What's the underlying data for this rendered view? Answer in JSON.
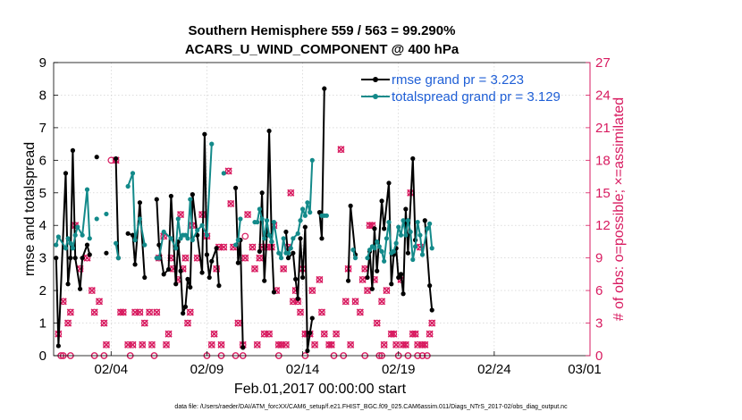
{
  "chart_data": {
    "type": "line",
    "title": "Southern Hemisphere 559 / 563 = 99.290%",
    "subtitle": "ACARS_U_WIND_COMPONENT @ 400 hPa",
    "xlabel": "Feb.01,2017 00:00:00 start",
    "ylabel_left": "rmse and totalspread",
    "ylabel_right": "# of obs: o=possible; ×=assimilated",
    "xlim": [
      1,
      29
    ],
    "ylim_left": [
      0,
      9
    ],
    "ylim_right": [
      0,
      27
    ],
    "x_tick_values": [
      4,
      9,
      14,
      19,
      24,
      29
    ],
    "x_tick_labels": [
      "02/04",
      "02/09",
      "02/14",
      "02/19",
      "02/24",
      "03/01"
    ],
    "y_ticks_left": [
      "0",
      "1",
      "2",
      "3",
      "4",
      "5",
      "6",
      "7",
      "8",
      "9"
    ],
    "y_ticks_right": [
      "0",
      "3",
      "6",
      "9",
      "12",
      "15",
      "18",
      "21",
      "24",
      "27"
    ],
    "footnote": "data file: /Users/raeder/DAI/ATM_forcXX/CAM6_setup/f.e21.FHIST_BGC.f09_025.CAM6assim.011/Diags_NTrS_2017-02/obs_diag_output.nc",
    "colors": {
      "rmse": "#000000",
      "spread": "#138a8a",
      "obs": "#d81b60",
      "legend_text": "#1f5fd6"
    },
    "series": [
      {
        "name": "rmse",
        "legend": "rmse grand pr = 3.223",
        "points": [
          [
            1.13,
            3.0
          ],
          [
            1.25,
            0.3
          ],
          [
            1.63,
            5.6
          ],
          [
            1.75,
            2.2
          ],
          [
            1.88,
            3.0
          ],
          [
            2.0,
            6.3
          ],
          [
            2.13,
            3.0
          ],
          [
            2.38,
            2.05
          ],
          [
            2.5,
            3.0
          ],
          [
            2.75,
            3.4
          ],
          [
            2.88,
            3.1
          ],
          [
            null,
            null
          ],
          [
            3.25,
            6.1
          ],
          [
            null,
            null
          ],
          [
            3.75,
            3.15
          ],
          [
            null,
            null
          ],
          [
            4.25,
            6.05
          ],
          [
            4.38,
            3.0
          ],
          [
            null,
            null
          ],
          [
            4.88,
            3.75
          ],
          [
            5.13,
            3.7
          ],
          [
            5.25,
            2.8
          ],
          [
            5.5,
            4.7
          ],
          [
            5.75,
            2.4
          ],
          [
            null,
            null
          ],
          [
            6.38,
            4.8
          ],
          [
            6.5,
            3.4
          ],
          [
            6.75,
            2.5
          ],
          [
            7.0,
            2.65
          ],
          [
            7.13,
            4.9
          ],
          [
            7.38,
            2.2
          ],
          [
            7.5,
            3.5
          ],
          [
            7.63,
            2.6
          ],
          [
            7.75,
            1.3
          ],
          [
            7.88,
            1.5
          ],
          [
            8.0,
            2.35
          ],
          [
            8.13,
            2.1
          ],
          [
            8.25,
            4.95
          ],
          [
            8.5,
            3.7
          ],
          [
            8.75,
            2.55
          ],
          [
            8.88,
            6.8
          ],
          [
            9.0,
            3.1
          ],
          [
            9.13,
            2.4
          ],
          [
            9.25,
            2.9
          ],
          [
            9.5,
            3.3
          ],
          [
            9.63,
            2.15
          ],
          [
            null,
            null
          ],
          [
            10.5,
            5.15
          ],
          [
            10.63,
            2.85
          ],
          [
            10.75,
            3.55
          ],
          [
            10.88,
            0.25
          ],
          [
            null,
            null
          ],
          [
            11.75,
            3.2
          ],
          [
            11.88,
            5.0
          ],
          [
            12.0,
            2.3
          ],
          [
            12.13,
            3.7
          ],
          [
            12.25,
            6.9
          ],
          [
            12.38,
            3.5
          ],
          [
            12.5,
            1.95
          ],
          [
            null,
            null
          ],
          [
            13.13,
            3.8
          ],
          [
            13.25,
            3.0
          ],
          [
            13.5,
            3.15
          ],
          [
            13.63,
            2.35
          ],
          [
            13.75,
            1.75
          ],
          [
            13.88,
            3.6
          ],
          [
            14.0,
            2.4
          ],
          [
            14.13,
            3.95
          ],
          [
            14.25,
            0.15
          ],
          [
            14.38,
            0.7
          ],
          [
            14.5,
            1.15
          ],
          [
            null,
            null
          ],
          [
            14.88,
            4.4
          ],
          [
            15.0,
            3.6
          ],
          [
            15.13,
            8.2
          ],
          [
            null,
            null
          ],
          [
            16.38,
            2.3
          ],
          [
            16.5,
            4.6
          ],
          [
            16.75,
            3.1
          ],
          [
            null,
            null
          ],
          [
            17.38,
            2.4
          ],
          [
            17.5,
            3.2
          ],
          [
            17.63,
            2.05
          ],
          [
            17.75,
            3.9
          ],
          [
            17.88,
            2.6
          ],
          [
            18.13,
            4.75
          ],
          [
            18.25,
            3.9
          ],
          [
            18.5,
            5.3
          ],
          [
            18.63,
            2.2
          ],
          [
            18.75,
            3.1
          ],
          [
            18.88,
            3.3
          ],
          [
            19.0,
            2.4
          ],
          [
            19.13,
            2.5
          ],
          [
            19.25,
            1.9
          ],
          [
            19.38,
            4.5
          ],
          [
            19.5,
            3.15
          ],
          [
            19.75,
            6.05
          ],
          [
            19.88,
            3.55
          ],
          [
            null,
            null
          ],
          [
            20.38,
            4.15
          ],
          [
            20.63,
            2.15
          ],
          [
            20.75,
            1.4
          ]
        ]
      },
      {
        "name": "totalspread",
        "legend": "totalspread grand pr = 3.129",
        "points": [
          [
            1.13,
            3.4
          ],
          [
            1.25,
            3.65
          ],
          [
            1.63,
            3.3
          ],
          [
            1.75,
            3.6
          ],
          [
            1.88,
            3.45
          ],
          [
            2.0,
            3.3
          ],
          [
            2.13,
            3.7
          ],
          [
            2.25,
            3.95
          ],
          [
            2.5,
            3.7
          ],
          [
            2.75,
            5.1
          ],
          [
            2.88,
            3.6
          ],
          [
            null,
            null
          ],
          [
            3.25,
            4.2
          ],
          [
            null,
            null
          ],
          [
            3.75,
            4.35
          ],
          [
            null,
            null
          ],
          [
            4.25,
            3.45
          ],
          [
            4.38,
            3.0
          ],
          [
            null,
            null
          ],
          [
            4.88,
            5.2
          ],
          [
            5.13,
            5.6
          ],
          [
            5.25,
            3.55
          ],
          [
            5.5,
            4.2
          ],
          [
            5.75,
            3.4
          ],
          [
            null,
            null
          ],
          [
            6.38,
            3.0
          ],
          [
            6.5,
            3.0
          ],
          [
            6.75,
            3.8
          ],
          [
            7.13,
            3.6
          ],
          [
            7.38,
            3.3
          ],
          [
            7.5,
            4.2
          ],
          [
            7.63,
            3.6
          ],
          [
            7.75,
            3.7
          ],
          [
            7.88,
            3.7
          ],
          [
            8.0,
            3.6
          ],
          [
            8.13,
            4.8
          ],
          [
            8.25,
            3.55
          ],
          [
            8.5,
            3.85
          ],
          [
            8.75,
            4.0
          ],
          [
            9.0,
            3.7
          ],
          [
            9.25,
            6.5
          ],
          [
            null,
            null
          ],
          [
            9.88,
            5.6
          ],
          [
            null,
            null
          ],
          [
            10.5,
            3.4
          ],
          [
            10.63,
            3.55
          ],
          [
            10.75,
            4.2
          ],
          [
            null,
            null
          ],
          [
            11.5,
            4.1
          ],
          [
            11.63,
            4.1
          ],
          [
            11.75,
            4.5
          ],
          [
            11.88,
            4.2
          ],
          [
            12.0,
            3.6
          ],
          [
            12.13,
            4.15
          ],
          [
            12.25,
            3.7
          ],
          [
            12.38,
            3.5
          ],
          [
            12.5,
            4.1
          ],
          [
            12.75,
            3.15
          ],
          [
            12.88,
            3.0
          ],
          [
            13.0,
            3.6
          ],
          [
            13.13,
            3.15
          ],
          [
            13.25,
            3.15
          ],
          [
            13.38,
            3.3
          ],
          [
            13.5,
            3.6
          ],
          [
            13.75,
            3.75
          ],
          [
            13.88,
            4.15
          ],
          [
            14.0,
            4.5
          ],
          [
            14.13,
            4.3
          ],
          [
            14.25,
            4.7
          ],
          [
            14.38,
            4.4
          ],
          [
            14.5,
            6.0
          ],
          [
            null,
            null
          ],
          [
            15.0,
            4.3
          ],
          [
            15.13,
            4.3
          ],
          [
            15.25,
            4.3
          ],
          [
            null,
            null
          ],
          [
            16.63,
            3.25
          ],
          [
            16.75,
            3.0
          ],
          [
            null,
            null
          ],
          [
            17.38,
            3.0
          ],
          [
            17.5,
            3.25
          ],
          [
            17.63,
            3.35
          ],
          [
            17.75,
            3.3
          ],
          [
            17.88,
            3.5
          ],
          [
            18.0,
            3.35
          ],
          [
            18.13,
            3.2
          ],
          [
            18.25,
            2.9
          ],
          [
            18.38,
            3.6
          ],
          [
            18.5,
            4.1
          ],
          [
            18.63,
            3.15
          ],
          [
            18.75,
            3.2
          ],
          [
            18.88,
            3.45
          ],
          [
            19.0,
            3.95
          ],
          [
            19.13,
            3.7
          ],
          [
            19.25,
            4.15
          ],
          [
            19.38,
            3.7
          ],
          [
            19.5,
            4.15
          ],
          [
            19.63,
            3.8
          ],
          [
            19.75,
            2.95
          ],
          [
            19.88,
            3.35
          ],
          [
            20.0,
            4.1
          ],
          [
            20.13,
            3.7
          ],
          [
            20.25,
            3.1
          ],
          [
            20.5,
            3.9
          ],
          [
            20.63,
            4.05
          ],
          [
            20.75,
            3.3
          ]
        ]
      }
    ],
    "obs_assimilated": [
      [
        1.25,
        2
      ],
      [
        1.5,
        5
      ],
      [
        1.75,
        3
      ],
      [
        1.88,
        4
      ],
      [
        2.13,
        12
      ],
      [
        2.38,
        8
      ],
      [
        2.75,
        9
      ],
      [
        3.0,
        6
      ],
      [
        3.13,
        4
      ],
      [
        3.38,
        5
      ],
      [
        3.63,
        3
      ],
      [
        3.75,
        1
      ],
      [
        4.25,
        18
      ],
      [
        4.5,
        4
      ],
      [
        4.63,
        4
      ],
      [
        4.88,
        1
      ],
      [
        5.13,
        1
      ],
      [
        5.25,
        4
      ],
      [
        5.5,
        4
      ],
      [
        5.63,
        1
      ],
      [
        5.75,
        3
      ],
      [
        6.0,
        4
      ],
      [
        6.13,
        1
      ],
      [
        6.38,
        4
      ],
      [
        6.5,
        9
      ],
      [
        6.75,
        11
      ],
      [
        6.88,
        1
      ],
      [
        7.0,
        2
      ],
      [
        7.13,
        9
      ],
      [
        7.25,
        8
      ],
      [
        7.5,
        7
      ],
      [
        7.63,
        13
      ],
      [
        7.75,
        8
      ],
      [
        7.88,
        9
      ],
      [
        8.0,
        3
      ],
      [
        8.13,
        4
      ],
      [
        8.25,
        12
      ],
      [
        8.5,
        9
      ],
      [
        8.75,
        13
      ],
      [
        9.0,
        11
      ],
      [
        9.25,
        1
      ],
      [
        9.38,
        2
      ],
      [
        9.5,
        8
      ],
      [
        9.63,
        10
      ],
      [
        9.75,
        1
      ],
      [
        9.88,
        10
      ],
      [
        10.13,
        17
      ],
      [
        10.25,
        14
      ],
      [
        10.38,
        10
      ],
      [
        10.63,
        3
      ],
      [
        10.88,
        1
      ],
      [
        11.0,
        9
      ],
      [
        11.13,
        13
      ],
      [
        11.38,
        10
      ],
      [
        11.5,
        8
      ],
      [
        11.63,
        1
      ],
      [
        11.75,
        9
      ],
      [
        11.88,
        10
      ],
      [
        12.0,
        2
      ],
      [
        12.13,
        10
      ],
      [
        12.25,
        2
      ],
      [
        12.38,
        10
      ],
      [
        12.5,
        12
      ],
      [
        12.63,
        6
      ],
      [
        12.75,
        1
      ],
      [
        12.88,
        1
      ],
      [
        13.0,
        8
      ],
      [
        13.13,
        1
      ],
      [
        13.25,
        10
      ],
      [
        13.38,
        15
      ],
      [
        13.5,
        5
      ],
      [
        13.63,
        6
      ],
      [
        13.75,
        5
      ],
      [
        13.88,
        4
      ],
      [
        14.0,
        8
      ],
      [
        14.13,
        2
      ],
      [
        14.25,
        2
      ],
      [
        14.38,
        2
      ],
      [
        14.5,
        6
      ],
      [
        14.63,
        1
      ],
      [
        14.88,
        7
      ],
      [
        15.0,
        4
      ],
      [
        15.13,
        2
      ],
      [
        15.38,
        1
      ],
      [
        15.5,
        1
      ],
      [
        15.75,
        2
      ],
      [
        16.0,
        19
      ],
      [
        16.25,
        5
      ],
      [
        16.38,
        8
      ],
      [
        16.5,
        1
      ],
      [
        16.75,
        5
      ],
      [
        17.0,
        4
      ],
      [
        17.13,
        7
      ],
      [
        17.25,
        8
      ],
      [
        17.38,
        6
      ],
      [
        17.5,
        12
      ],
      [
        17.63,
        12
      ],
      [
        17.75,
        7
      ],
      [
        17.88,
        3
      ],
      [
        18.13,
        5
      ],
      [
        18.25,
        1
      ],
      [
        18.38,
        6
      ],
      [
        18.63,
        2
      ],
      [
        18.75,
        2
      ],
      [
        18.88,
        1
      ],
      [
        19.13,
        7
      ],
      [
        19.25,
        1
      ],
      [
        19.38,
        1
      ],
      [
        19.63,
        15
      ],
      [
        19.75,
        2
      ],
      [
        19.88,
        2
      ],
      [
        20.0,
        1
      ],
      [
        20.13,
        10
      ],
      [
        20.25,
        1
      ],
      [
        20.38,
        1
      ],
      [
        20.63,
        2
      ],
      [
        20.75,
        3
      ]
    ],
    "obs_possible_only": [
      [
        4.0,
        18
      ],
      [
        11.0,
        11
      ]
    ],
    "obs_zero_x": [
      1.38,
      1.5,
      1.88,
      3.13,
      3.63,
      5.0,
      6.25,
      9.0,
      9.75,
      10.5,
      10.88,
      12.75,
      14.13,
      15.63,
      16.13,
      17.25,
      18.0,
      18.13,
      19.0,
      19.5,
      20.0,
      20.25,
      20.5
    ]
  }
}
